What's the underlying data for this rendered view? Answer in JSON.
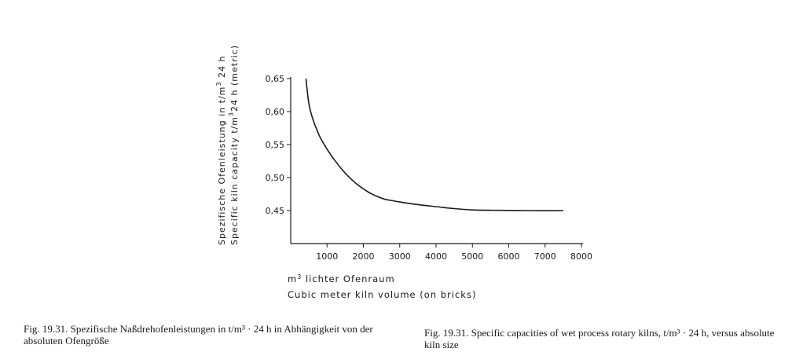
{
  "chart_data": {
    "type": "line",
    "ylabel_de_pre": "Spezifische Ofenleistung in t/m",
    "ylabel_de_sup": "3",
    "ylabel_de_post": " 24 h",
    "ylabel_en_pre": "Specific kiln capacity t/m",
    "ylabel_en_sup": "3",
    "ylabel_en_post": "24 h (metric)",
    "xlabel_de_pre": "m",
    "xlabel_de_sup": "3",
    "xlabel_de_post": " lichter Ofenraum",
    "xlabel_en": "Cubic meter kiln volume (on bricks)",
    "xlim": [
      0,
      8000
    ],
    "ylim": [
      0.4,
      0.65
    ],
    "x_ticks": [
      1000,
      2000,
      3000,
      4000,
      5000,
      6000,
      7000,
      8000
    ],
    "x_tick_labels": [
      "1000",
      "2000",
      "3000",
      "4000",
      "5000",
      "6000",
      "7000",
      "8000"
    ],
    "y_ticks": [
      0.45,
      0.5,
      0.55,
      0.6,
      0.65
    ],
    "y_tick_labels": [
      "0,45",
      "0,50",
      "0,55",
      "0,60",
      "0,65"
    ],
    "series": [
      {
        "x": [
          420,
          500,
          600,
          700,
          800,
          1000,
          1200,
          1400,
          1600,
          1800,
          2000,
          2200,
          2400,
          2600,
          2800,
          3000,
          3500,
          4000,
          4500,
          5000,
          5500,
          6000,
          6500,
          7000,
          7500
        ],
        "y": [
          0.65,
          0.612,
          0.59,
          0.575,
          0.562,
          0.543,
          0.527,
          0.513,
          0.501,
          0.491,
          0.483,
          0.476,
          0.471,
          0.467,
          0.465,
          0.463,
          0.459,
          0.456,
          0.453,
          0.451,
          0.4505,
          0.4502,
          0.45,
          0.4498,
          0.45
        ]
      }
    ]
  },
  "captions": {
    "de": "Fig. 19.31. Spezifische Naßdrehofenleistungen in t/m³ · 24 h in Abhängigkeit von der absoluten Ofengröße",
    "en": "Fig. 19.31. Specific capacities of wet process rotary kilns, t/m³ · 24 h, versus absolute kiln size"
  }
}
